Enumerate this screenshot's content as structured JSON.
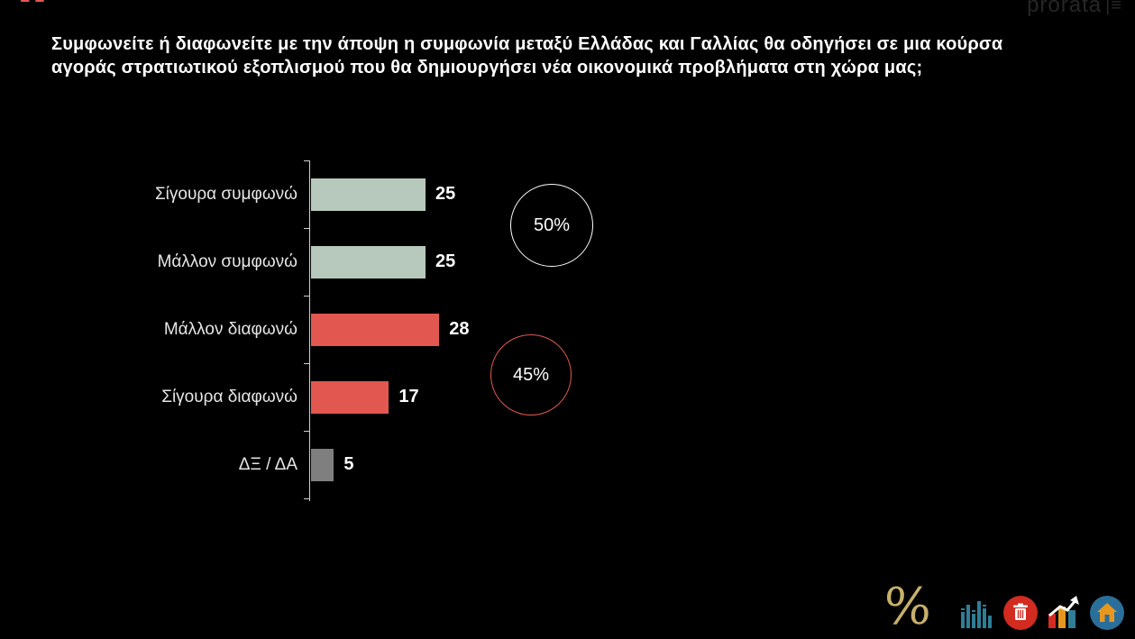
{
  "header": {
    "quote_mark": "“",
    "title": "Συμφωνείτε ή διαφωνείτε με την άποψη η συμφωνία μεταξύ Ελλάδας και Γαλλίας θα οδηγήσει σε μια κούρσα αγοράς στρατιωτικού εξοπλισμού που θα δημιουργήσει νέα οικονομικά προβλήματα στη χώρα μας;",
    "logo_text": "prorata",
    "logo_menu_glyph": "|≡"
  },
  "chart_data": {
    "type": "bar",
    "orientation": "horizontal",
    "categories": [
      "Σίγουρα συμφωνώ",
      "Μάλλον συμφωνώ",
      "Μάλλον διαφωνώ",
      "Σίγουρα διαφωνώ",
      "ΔΞ / ΔΑ"
    ],
    "values": [
      25,
      25,
      28,
      17,
      5
    ],
    "bar_colors": [
      "#b7c9bc",
      "#b7c9bc",
      "#e2574f",
      "#e2574f",
      "#7f7f7f"
    ],
    "xlim": [
      0,
      30
    ],
    "grid": false,
    "legend": "none",
    "annotations": [
      {
        "label": "50%",
        "meaning": "total agree (25+25)",
        "ring_color": "#ffffff"
      },
      {
        "label": "45%",
        "meaning": "total disagree (28+17)",
        "ring_color": "#e2574f"
      }
    ]
  },
  "footer": {
    "percent_glyph": "%",
    "icon_colors": {
      "percent": "#c8b06a",
      "equalizer": "#2f7e96",
      "trash_circle": "#d22b20",
      "growth_red": "#d22b20",
      "growth_orange": "#e8971e",
      "growth_teal": "#2f7e96",
      "home_circle": "#2a6e9a",
      "home_house": "#e8971e"
    }
  }
}
